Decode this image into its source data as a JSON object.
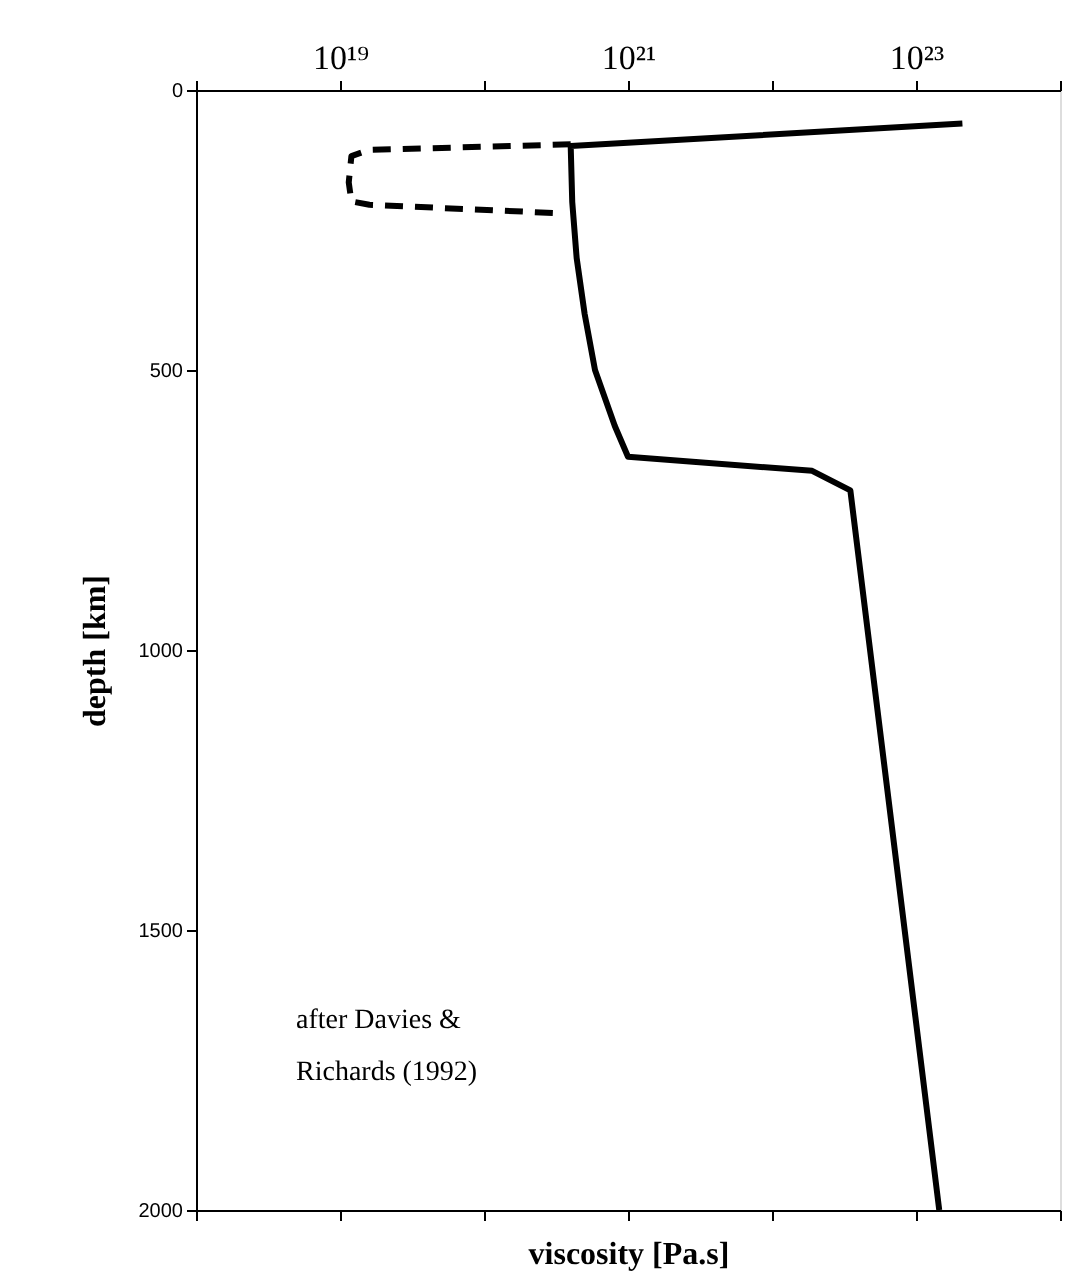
{
  "chart_data": {
    "type": "line",
    "xlabel": "viscosity [Pa.s]",
    "ylabel": "depth [km]",
    "log": "x",
    "xlim": [
      1e+18,
      1e+24
    ],
    "xticks": [
      {
        "value": 1e+18,
        "label": null
      },
      {
        "value": 1e+19,
        "label": "10¹⁹"
      },
      {
        "value": 1e+20,
        "label": null
      },
      {
        "value": 1e+21,
        "label": "10²¹"
      },
      {
        "value": 1e+22,
        "label": null
      },
      {
        "value": 1e+23,
        "label": "10²³"
      },
      {
        "value": 1e+24,
        "label": null
      }
    ],
    "ylim": [
      2000,
      0
    ],
    "yticks": [
      0,
      500,
      1000,
      1500,
      2000
    ],
    "grid": false,
    "marker": "none",
    "series": [
      {
        "color": "#000000",
        "line_style": "solid",
        "x": [
          2.1e+23,
          4e+20,
          4.1e+20,
          4.4e+20,
          5e+20,
          5.9e+20,
          8.1e+20,
          1e+21,
          1.9e+22,
          3.5e+22,
          1.45e+23
        ],
        "values": [
          60,
          100,
          200,
          300,
          400,
          500,
          600,
          655,
          680,
          715,
          2000
        ]
      },
      {
        "color": "#000000",
        "line_style": "dashed",
        "x": [
          4e+20,
          1.6e+19,
          1.2e+19,
          1.15e+19,
          1.2e+19,
          1.6e+19,
          3.3e+20
        ],
        "values": [
          97,
          107,
          118,
          165,
          199,
          205,
          220
        ]
      }
    ],
    "annotations": [
      "after Davies &\nRichards (1992)"
    ]
  }
}
